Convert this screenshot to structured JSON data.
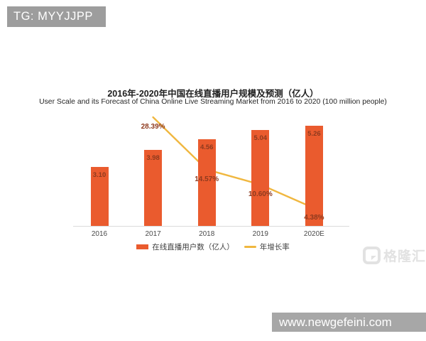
{
  "badge": {
    "text": "TG: MYYJJPP"
  },
  "banner": {
    "url": "www.newgefeini.com"
  },
  "watermark": {
    "text": "格隆汇"
  },
  "chart_data": {
    "type": "bar",
    "title": "2016年-2020年中国在线直播用户规模及预测（亿人）",
    "subtitle": "User Scale and its Forecast of China Online Live Streaming Market from 2016 to 2020 (100 million people)",
    "categories": [
      "2016",
      "2017",
      "2018",
      "2019",
      "2020E"
    ],
    "series": [
      {
        "name": "在线直播用户数（亿人）",
        "type": "bar",
        "values": [
          3.1,
          3.98,
          4.56,
          5.04,
          5.26
        ],
        "labels": [
          "3.10",
          "3.98",
          "4.56",
          "5.04",
          "5.26"
        ],
        "color": "#ea5b2e",
        "label_color": "#8e3a1e"
      },
      {
        "name": "年增长率",
        "type": "line",
        "values": [
          null,
          28.39,
          14.57,
          10.6,
          4.38
        ],
        "labels": [
          null,
          "28.39%",
          "14.57%",
          "10.60%",
          "4.38%"
        ],
        "color": "#f0b73f",
        "label_color": "#8e3a1e"
      }
    ],
    "xlabel": "",
    "ylabel": "",
    "grid": false,
    "legend_position": "bottom",
    "value_axis_visible": false
  }
}
